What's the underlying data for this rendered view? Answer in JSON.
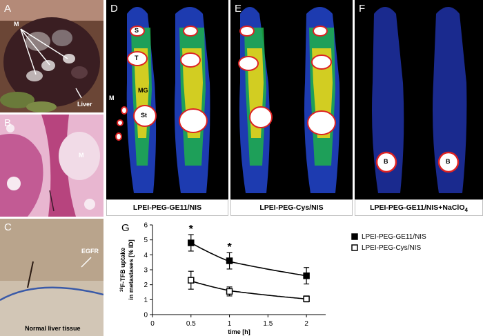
{
  "panels": {
    "A": {
      "label": "A",
      "ann_m": "M",
      "ann_liver": "Liver"
    },
    "B": {
      "label": "B",
      "ann_m": "M"
    },
    "C": {
      "label": "C",
      "ann_egfr": "EGFR",
      "ann_normal": "Normal liver tissue"
    },
    "D": {
      "label": "D",
      "caption": "LPEI-PEG-GE11/NIS",
      "ann": {
        "s": "S",
        "t": "T",
        "mg": "MG",
        "st": "St",
        "m": "M"
      }
    },
    "E": {
      "label": "E",
      "caption": "LPEI-PEG-Cys/NIS"
    },
    "F": {
      "label": "F",
      "caption_main": "LPEI-PEG-GE11/NIS+NaClO",
      "caption_sub": "4",
      "ann_b": "B"
    },
    "G": {
      "label": "G"
    }
  },
  "colors": {
    "scan_bg": "#000000",
    "pet_hot": "#ffffff",
    "he_pink": "#c0458a",
    "ihc_brown": "#8a6a4e"
  },
  "chart_data": {
    "type": "line",
    "title": "",
    "ylabel_line1": "F-TFB uptake",
    "ylabel_sup": "18",
    "ylabel_line2": "in metastases [% ID]",
    "xlabel": "time [h]",
    "xlim": [
      0,
      2.25
    ],
    "ylim": [
      0,
      6
    ],
    "xticks": [
      "0",
      "0.5",
      "1",
      "1.5",
      "2"
    ],
    "yticks": [
      "0",
      "1",
      "2",
      "3",
      "4",
      "5",
      "6"
    ],
    "legend_position": "top-right",
    "series": [
      {
        "name": "LPEI-PEG-GE11/NIS",
        "marker": "filled-square",
        "x": [
          0.5,
          1,
          2
        ],
        "y": [
          4.8,
          3.6,
          2.6
        ],
        "err": [
          0.55,
          0.55,
          0.55
        ],
        "fit": [
          4.8,
          3.55,
          2.6
        ]
      },
      {
        "name": "LPEI-PEG-Cys/NIS",
        "marker": "open-square",
        "x": [
          0.5,
          1,
          2
        ],
        "y": [
          2.3,
          1.55,
          1.05
        ],
        "err": [
          0.6,
          0.3,
          0.2
        ],
        "fit": [
          2.25,
          1.6,
          1.05
        ]
      }
    ],
    "significance": [
      {
        "x": 0.5,
        "label": "*"
      },
      {
        "x": 1,
        "label": "*"
      }
    ]
  }
}
